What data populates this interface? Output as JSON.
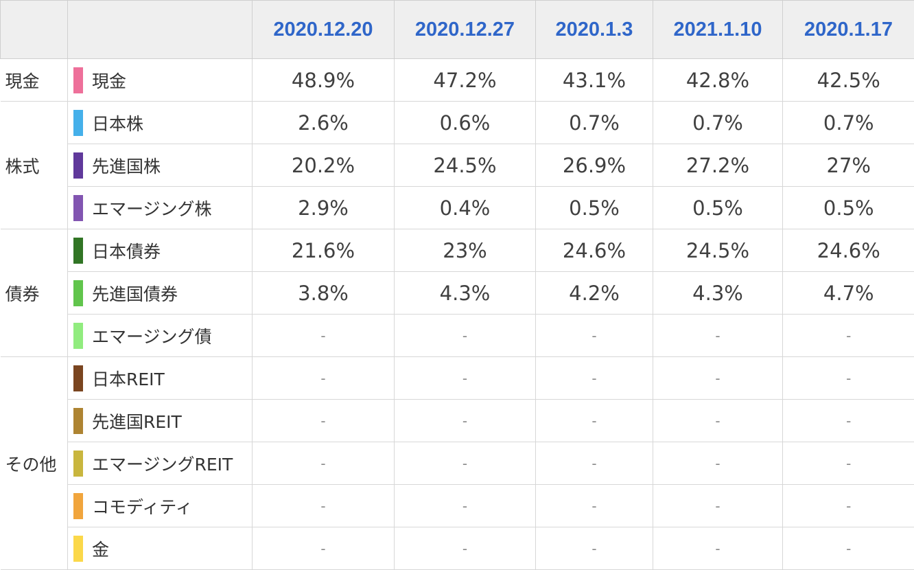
{
  "table": {
    "header": {
      "blank_group": "",
      "blank_asset": "",
      "dates": [
        "2020.12.20",
        "2020.12.27",
        "2020.1.3",
        "2021.1.10",
        "2020.1.17"
      ]
    },
    "groups": [
      {
        "name": "現金",
        "rows": [
          {
            "asset": "現金",
            "color": "#ee709a",
            "values": [
              "48.9%",
              "47.2%",
              "43.1%",
              "42.8%",
              "42.5%"
            ]
          }
        ]
      },
      {
        "name": "株式",
        "rows": [
          {
            "asset": "日本株",
            "color": "#45b0ea",
            "values": [
              "2.6%",
              "0.6%",
              "0.7%",
              "0.7%",
              "0.7%"
            ]
          },
          {
            "asset": "先進国株",
            "color": "#60399b",
            "values": [
              "20.2%",
              "24.5%",
              "26.9%",
              "27.2%",
              "27%"
            ]
          },
          {
            "asset": "エマージング株",
            "color": "#8255b1",
            "values": [
              "2.9%",
              "0.4%",
              "0.5%",
              "0.5%",
              "0.5%"
            ]
          }
        ]
      },
      {
        "name": "債券",
        "rows": [
          {
            "asset": "日本債券",
            "color": "#317525",
            "values": [
              "21.6%",
              "23%",
              "24.6%",
              "24.5%",
              "24.6%"
            ]
          },
          {
            "asset": "先進国債券",
            "color": "#61c54c",
            "values": [
              "3.8%",
              "4.3%",
              "4.2%",
              "4.3%",
              "4.7%"
            ]
          },
          {
            "asset": "エマージング債",
            "color": "#91ec7f",
            "values": [
              "-",
              "-",
              "-",
              "-",
              "-"
            ]
          }
        ]
      },
      {
        "name": "その他",
        "rows": [
          {
            "asset": "日本REIT",
            "color": "#7a4520",
            "values": [
              "-",
              "-",
              "-",
              "-",
              "-"
            ]
          },
          {
            "asset": "先進国REIT",
            "color": "#ae8432",
            "values": [
              "-",
              "-",
              "-",
              "-",
              "-"
            ]
          },
          {
            "asset": "エマージングREIT",
            "color": "#c9b63e",
            "values": [
              "-",
              "-",
              "-",
              "-",
              "-"
            ]
          },
          {
            "asset": "コモディティ",
            "color": "#f1a53d",
            "values": [
              "-",
              "-",
              "-",
              "-",
              "-"
            ]
          },
          {
            "asset": "金",
            "color": "#fbd84a",
            "values": [
              "-",
              "-",
              "-",
              "-",
              "-"
            ]
          }
        ]
      }
    ]
  }
}
